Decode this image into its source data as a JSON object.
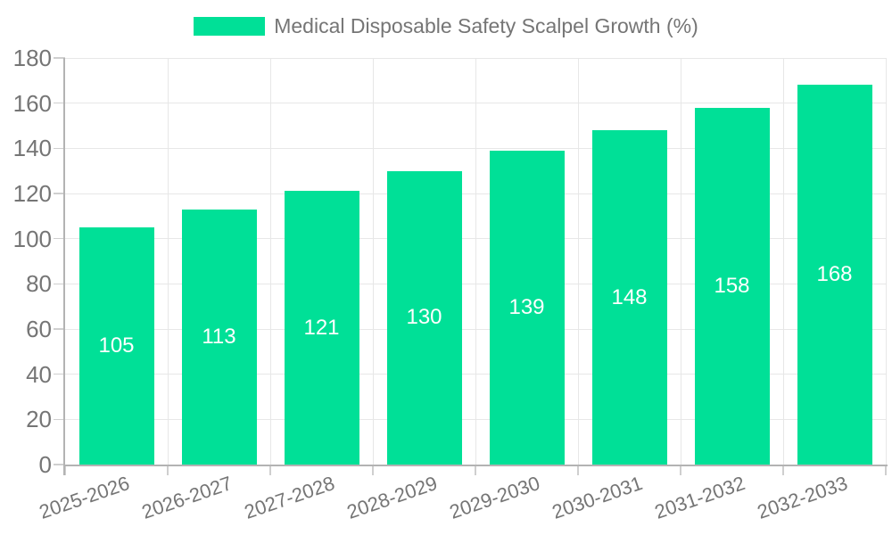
{
  "chart_data": {
    "type": "bar",
    "title": "Medical Disposable Safety Scalpel Growth (%)",
    "categories": [
      "2025-2026",
      "2026-2027",
      "2027-2028",
      "2028-2029",
      "2029-2030",
      "2030-2031",
      "2031-2032",
      "2032-2033"
    ],
    "series": [
      {
        "name": "Medical Disposable Safety Scalpel Growth (%)",
        "values": [
          105,
          113,
          121,
          130,
          139,
          148,
          158,
          168
        ]
      }
    ],
    "values": [
      105,
      113,
      121,
      130,
      139,
      148,
      158,
      168
    ],
    "value_labels_shown": true,
    "xlabel": "",
    "ylabel": "",
    "ylim": [
      0,
      180
    ],
    "ytick_step": 20,
    "yticks": [
      0,
      20,
      40,
      60,
      80,
      100,
      120,
      140,
      160,
      180
    ],
    "grid": true,
    "legend_position": "top",
    "x_label_rotation_deg": -19
  },
  "legend": {
    "items": [
      {
        "label": "Medical Disposable Safety Scalpel Growth (%)",
        "swatch": "rect"
      }
    ]
  },
  "colors": {
    "bar": "#00e097",
    "grid": "#e7e7e7",
    "axis": "#b3b3b3",
    "tick": "#cfcfcf",
    "text": "#757575",
    "value_label": "#ffffff",
    "background": "#ffffff"
  }
}
